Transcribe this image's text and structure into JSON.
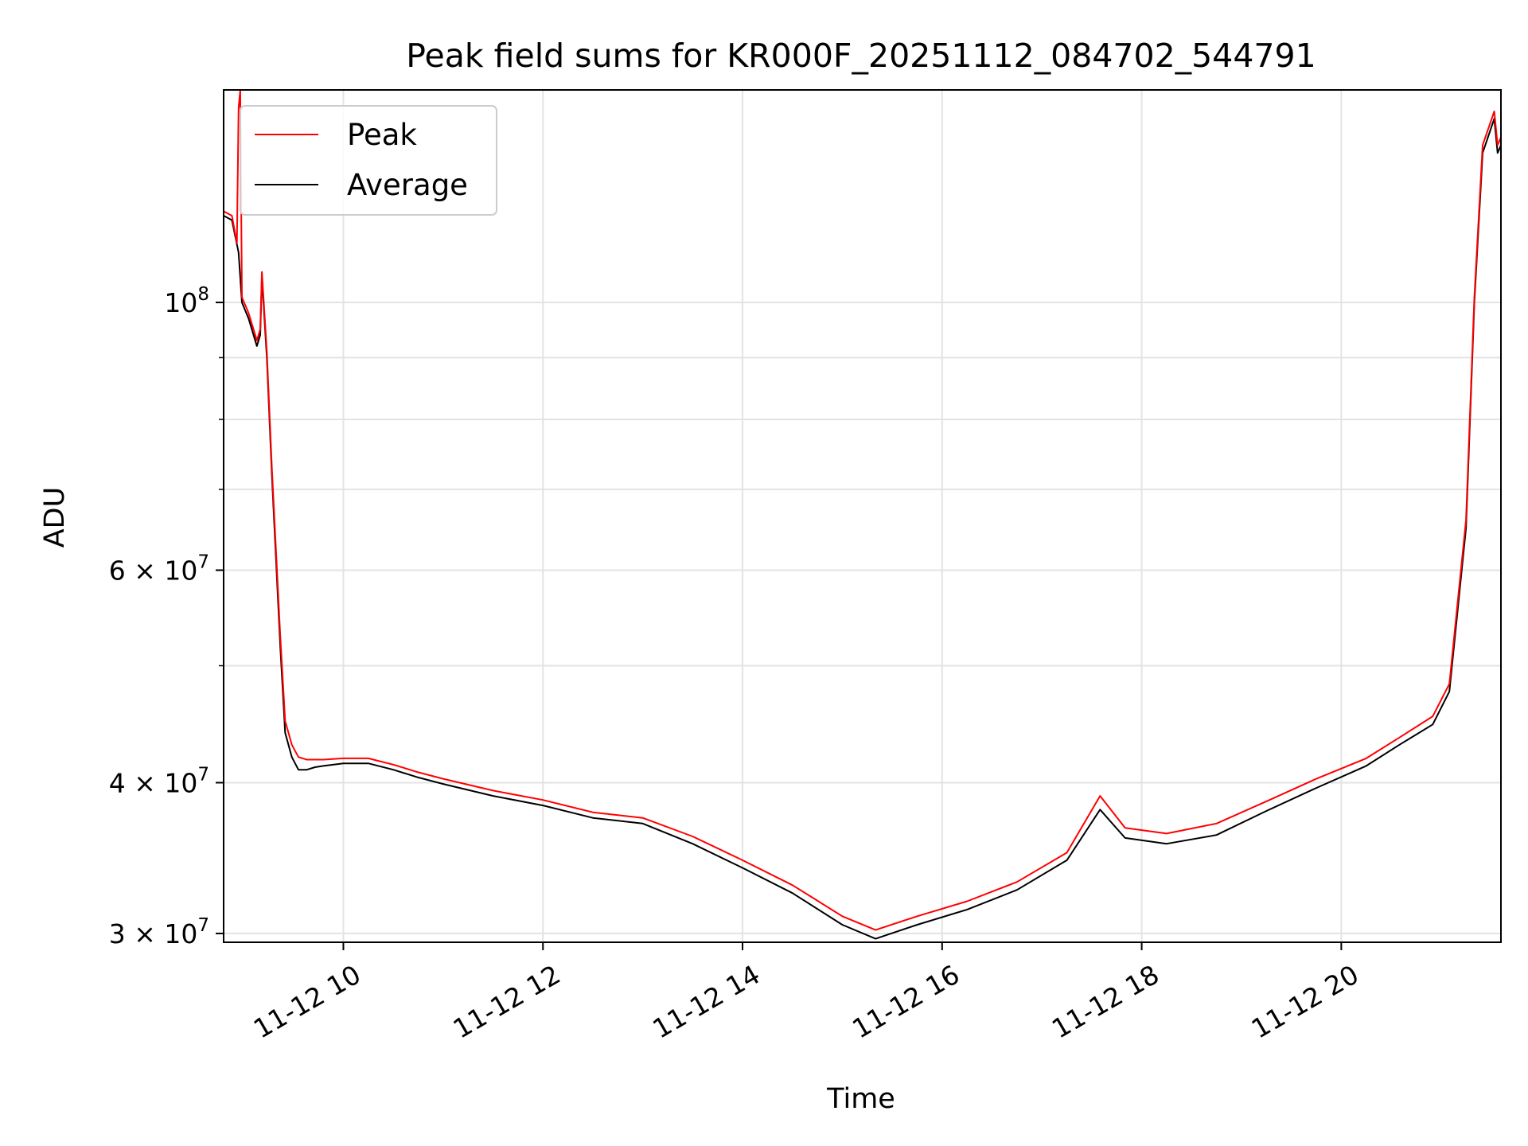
{
  "chart_data": {
    "type": "line",
    "title": "Peak field sums for KR000F_20251112_084702_544791",
    "xlabel": "Time",
    "ylabel": "ADU",
    "yscale": "log",
    "xlim": [
      "2025-11-12 08:48",
      "2025-11-12 21:36"
    ],
    "ylim": [
      29500000,
      150000000
    ],
    "x_ticks": [
      "11-12 10",
      "11-12 12",
      "11-12 14",
      "11-12 16",
      "11-12 18",
      "11-12 20"
    ],
    "y_ticks": [
      {
        "value": 100000000,
        "base": "10",
        "exp": "8"
      },
      {
        "value": 60000000,
        "base": "6 × 10",
        "exp": "7"
      },
      {
        "value": 40000000,
        "base": "4 × 10",
        "exp": "7"
      },
      {
        "value": 30000000,
        "base": "3 × 10",
        "exp": "7"
      }
    ],
    "grid": true,
    "legend_position": "upper left",
    "colors": {
      "Peak": "#ff0000",
      "Average": "#000000"
    },
    "series": [
      {
        "name": "Average",
        "x": [
          "2025-11-12 08:48",
          "2025-11-12 08:53",
          "2025-11-12 08:57",
          "2025-11-12 08:59",
          "2025-11-12 09:03",
          "2025-11-12 09:08",
          "2025-11-12 09:10",
          "2025-11-12 09:11",
          "2025-11-12 09:14",
          "2025-11-12 09:17",
          "2025-11-12 09:22",
          "2025-11-12 09:25",
          "2025-11-12 09:29",
          "2025-11-12 09:33",
          "2025-11-12 09:38",
          "2025-11-12 09:43",
          "2025-11-12 09:48",
          "2025-11-12 10:00",
          "2025-11-12 10:15",
          "2025-11-12 10:30",
          "2025-11-12 10:45",
          "2025-11-12 11:00",
          "2025-11-12 11:30",
          "2025-11-12 12:00",
          "2025-11-12 12:30",
          "2025-11-12 13:00",
          "2025-11-12 13:30",
          "2025-11-12 14:00",
          "2025-11-12 14:30",
          "2025-11-12 15:00",
          "2025-11-12 15:20",
          "2025-11-12 15:45",
          "2025-11-12 16:15",
          "2025-11-12 16:45",
          "2025-11-12 17:15",
          "2025-11-12 17:35",
          "2025-11-12 17:50",
          "2025-11-12 18:15",
          "2025-11-12 18:45",
          "2025-11-12 19:15",
          "2025-11-12 19:45",
          "2025-11-12 20:15",
          "2025-11-12 20:35",
          "2025-11-12 20:55",
          "2025-11-12 21:05",
          "2025-11-12 21:15",
          "2025-11-12 21:20",
          "2025-11-12 21:25",
          "2025-11-12 21:32",
          "2025-11-12 21:34",
          "2025-11-12 21:36"
        ],
        "values": [
          118000000,
          117000000,
          110000000,
          100000000,
          97000000,
          92000000,
          94000000,
          105000000,
          90000000,
          72000000,
          52000000,
          44000000,
          42000000,
          41000000,
          41000000,
          41200000,
          41300000,
          41500000,
          41500000,
          41000000,
          40400000,
          39900000,
          39000000,
          38300000,
          37400000,
          37000000,
          35600000,
          34000000,
          32400000,
          30500000,
          29700000,
          30500000,
          31400000,
          32600000,
          34500000,
          38000000,
          36000000,
          35600000,
          36200000,
          37900000,
          39600000,
          41300000,
          43000000,
          44700000,
          47600000,
          65000000,
          100000000,
          133000000,
          142000000,
          133000000,
          135000000
        ]
      },
      {
        "name": "Peak",
        "x": [
          "2025-11-12 08:48",
          "2025-11-12 08:53",
          "2025-11-12 08:56",
          "2025-11-12 08:57",
          "2025-11-12 08:58",
          "2025-11-12 08:59",
          "2025-11-12 09:03",
          "2025-11-12 09:08",
          "2025-11-12 09:10",
          "2025-11-12 09:11",
          "2025-11-12 09:14",
          "2025-11-12 09:17",
          "2025-11-12 09:22",
          "2025-11-12 09:25",
          "2025-11-12 09:29",
          "2025-11-12 09:33",
          "2025-11-12 09:38",
          "2025-11-12 09:43",
          "2025-11-12 09:48",
          "2025-11-12 10:00",
          "2025-11-12 10:15",
          "2025-11-12 10:30",
          "2025-11-12 10:45",
          "2025-11-12 11:00",
          "2025-11-12 11:30",
          "2025-11-12 12:00",
          "2025-11-12 12:30",
          "2025-11-12 13:00",
          "2025-11-12 13:30",
          "2025-11-12 14:00",
          "2025-11-12 14:30",
          "2025-11-12 15:00",
          "2025-11-12 15:20",
          "2025-11-12 15:45",
          "2025-11-12 16:15",
          "2025-11-12 16:45",
          "2025-11-12 17:15",
          "2025-11-12 17:35",
          "2025-11-12 17:50",
          "2025-11-12 18:15",
          "2025-11-12 18:45",
          "2025-11-12 19:15",
          "2025-11-12 19:45",
          "2025-11-12 20:15",
          "2025-11-12 20:35",
          "2025-11-12 20:55",
          "2025-11-12 21:05",
          "2025-11-12 21:15",
          "2025-11-12 21:20",
          "2025-11-12 21:25",
          "2025-11-12 21:32",
          "2025-11-12 21:34",
          "2025-11-12 21:36"
        ],
        "values": [
          119000000,
          118000000,
          112000000,
          145000000,
          150000000,
          101000000,
          98000000,
          93000000,
          95000000,
          106000000,
          91000000,
          73000000,
          53000000,
          45000000,
          43000000,
          42000000,
          41800000,
          41800000,
          41800000,
          41900000,
          41900000,
          41400000,
          40800000,
          40300000,
          39400000,
          38700000,
          37800000,
          37400000,
          36100000,
          34500000,
          32900000,
          31000000,
          30200000,
          31000000,
          31900000,
          33100000,
          35000000,
          39000000,
          36700000,
          36300000,
          37000000,
          38600000,
          40300000,
          41900000,
          43600000,
          45400000,
          48300000,
          66000000,
          101000000,
          135000000,
          144000000,
          135000000,
          137000000
        ]
      }
    ]
  }
}
